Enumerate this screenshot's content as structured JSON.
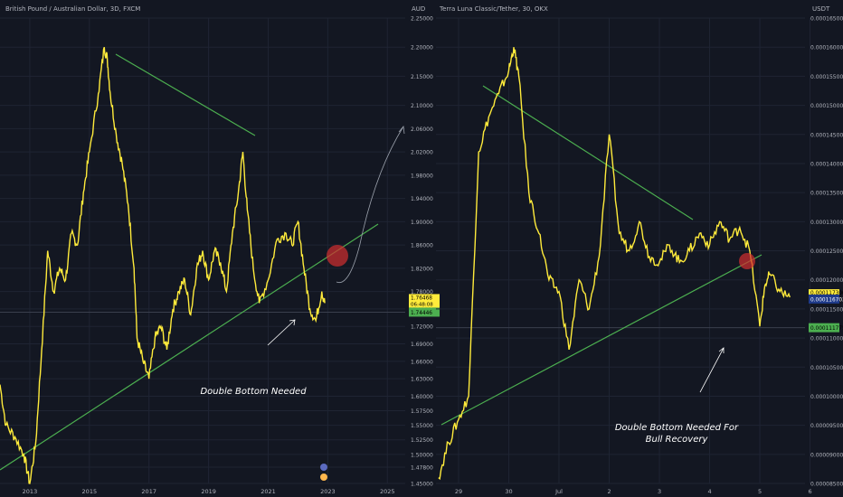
{
  "colors": {
    "background": "#131722",
    "grid": "#1f2433",
    "price_line": "#ffeb3b",
    "trend_line": "#4caf50",
    "axis_text": "#b2b5be",
    "annotation_text": "#ffffff",
    "highlight_circle": "#d32f2f",
    "price_tag": "#ffeb3b",
    "prev_tag": "#1e3a8a",
    "green_tag": "#4caf50"
  },
  "chart_data": [
    {
      "type": "line",
      "title": "British Pound / Australian Dollar, 3D, FXCM",
      "ylabel": "AUD",
      "x_ticks": [
        "2013",
        "2015",
        "2017",
        "2019",
        "2021",
        "2023",
        "2025"
      ],
      "y_ticks": [
        "1.45000",
        "1.47800",
        "1.50000",
        "1.52500",
        "1.55000",
        "1.57500",
        "1.60000",
        "1.63000",
        "1.66000",
        "1.69000",
        "1.72000",
        "1.75000",
        "1.78000",
        "1.82000",
        "1.86000",
        "1.90000",
        "1.94000",
        "1.98000",
        "2.02000",
        "2.06000",
        "2.10000",
        "2.15000",
        "2.20000",
        "2.25000"
      ],
      "ylim": [
        1.45,
        2.25
      ],
      "series": [
        {
          "x": [
            2012.0,
            2012.2,
            2012.5,
            2012.8,
            2013.0,
            2013.2,
            2013.4,
            2013.6,
            2013.8,
            2014.0,
            2014.2,
            2014.4,
            2014.6,
            2014.8,
            2015.0,
            2015.3,
            2015.5,
            2015.6,
            2015.7,
            2015.9,
            2016.1,
            2016.3,
            2016.5,
            2016.6,
            2016.8,
            2017.0,
            2017.2,
            2017.4,
            2017.6,
            2017.8,
            2018.0,
            2018.2,
            2018.4,
            2018.6,
            2018.8,
            2019.0,
            2019.2,
            2019.4,
            2019.6,
            2019.8,
            2020.0,
            2020.15,
            2020.3,
            2020.5,
            2020.7,
            2021.0,
            2021.3,
            2021.6,
            2021.8,
            2022.0,
            2022.2,
            2022.4,
            2022.6,
            2022.8,
            2022.9
          ],
          "values": [
            1.62,
            1.55,
            1.53,
            1.5,
            1.45,
            1.52,
            1.68,
            1.85,
            1.78,
            1.82,
            1.8,
            1.88,
            1.86,
            1.95,
            2.02,
            2.12,
            2.2,
            2.18,
            2.12,
            2.05,
            2.0,
            1.93,
            1.82,
            1.7,
            1.66,
            1.63,
            1.7,
            1.72,
            1.68,
            1.75,
            1.78,
            1.8,
            1.74,
            1.82,
            1.85,
            1.8,
            1.85,
            1.83,
            1.78,
            1.88,
            1.95,
            2.02,
            1.92,
            1.82,
            1.76,
            1.8,
            1.87,
            1.88,
            1.86,
            1.9,
            1.82,
            1.75,
            1.73,
            1.78,
            1.76
          ]
        }
      ],
      "last_price_tag": "1.76468",
      "countdown_tag": "06:48:08",
      "level_tag": "1.74446"
    },
    {
      "type": "line",
      "title": "Terra Luna Classic/Tether, 30, OKX",
      "ylabel": "USDT",
      "x_ticks": [
        "29",
        "30",
        "Jul",
        "2",
        "3",
        "4",
        "5",
        "6"
      ],
      "y_ticks": [
        "0.000165000",
        "0.000160000",
        "0.000155000",
        "0.000150000",
        "0.000145000",
        "0.000140000",
        "0.000135000",
        "0.000130000",
        "0.000125000",
        "0.000120000",
        "0.000115000",
        "0.000110000",
        "0.000105000",
        "0.000100000",
        "0.000095000",
        "0.000090000",
        "0.000085000"
      ],
      "ylim": [
        8.5e-05,
        0.000165
      ],
      "series": [
        {
          "x": [
            28.6,
            28.8,
            29.0,
            29.2,
            29.4,
            29.6,
            29.8,
            30.0,
            30.1,
            30.2,
            30.4,
            30.6,
            30.8,
            31.0,
            31.2,
            31.4,
            31.6,
            31.8,
            32.0,
            32.2,
            32.4,
            32.6,
            32.8,
            33.0,
            33.2,
            33.4,
            33.6,
            33.8,
            34.0,
            34.2,
            34.4,
            34.6,
            34.8,
            35.0,
            35.1,
            35.2,
            35.4,
            35.6
          ],
          "values": [
            8.6e-05,
            9.2e-05,
            9.6e-05,
            0.0001,
            0.000142,
            0.000148,
            0.000152,
            0.000156,
            0.00016,
            0.000155,
            0.000135,
            0.000128,
            0.00012,
            0.000118,
            0.000108,
            0.00012,
            0.000115,
            0.000124,
            0.000145,
            0.000128,
            0.000125,
            0.00013,
            0.000124,
            0.000123,
            0.000126,
            0.000123,
            0.000125,
            0.000128,
            0.000126,
            0.00013,
            0.000127,
            0.000129,
            0.000125,
            0.000112,
            0.000119,
            0.000121,
            0.000118,
            0.000117
          ]
        }
      ],
      "last_price_tag": "0.000117300",
      "countdown_tag": "18:08",
      "prev_tag": "0.000116703",
      "level_tag": "0.000111775"
    }
  ],
  "annotations": {
    "left_text": "Double Bottom Needed",
    "right_text_line1": "Double Bottom Needed For",
    "right_text_line2": "Bull Recovery"
  }
}
